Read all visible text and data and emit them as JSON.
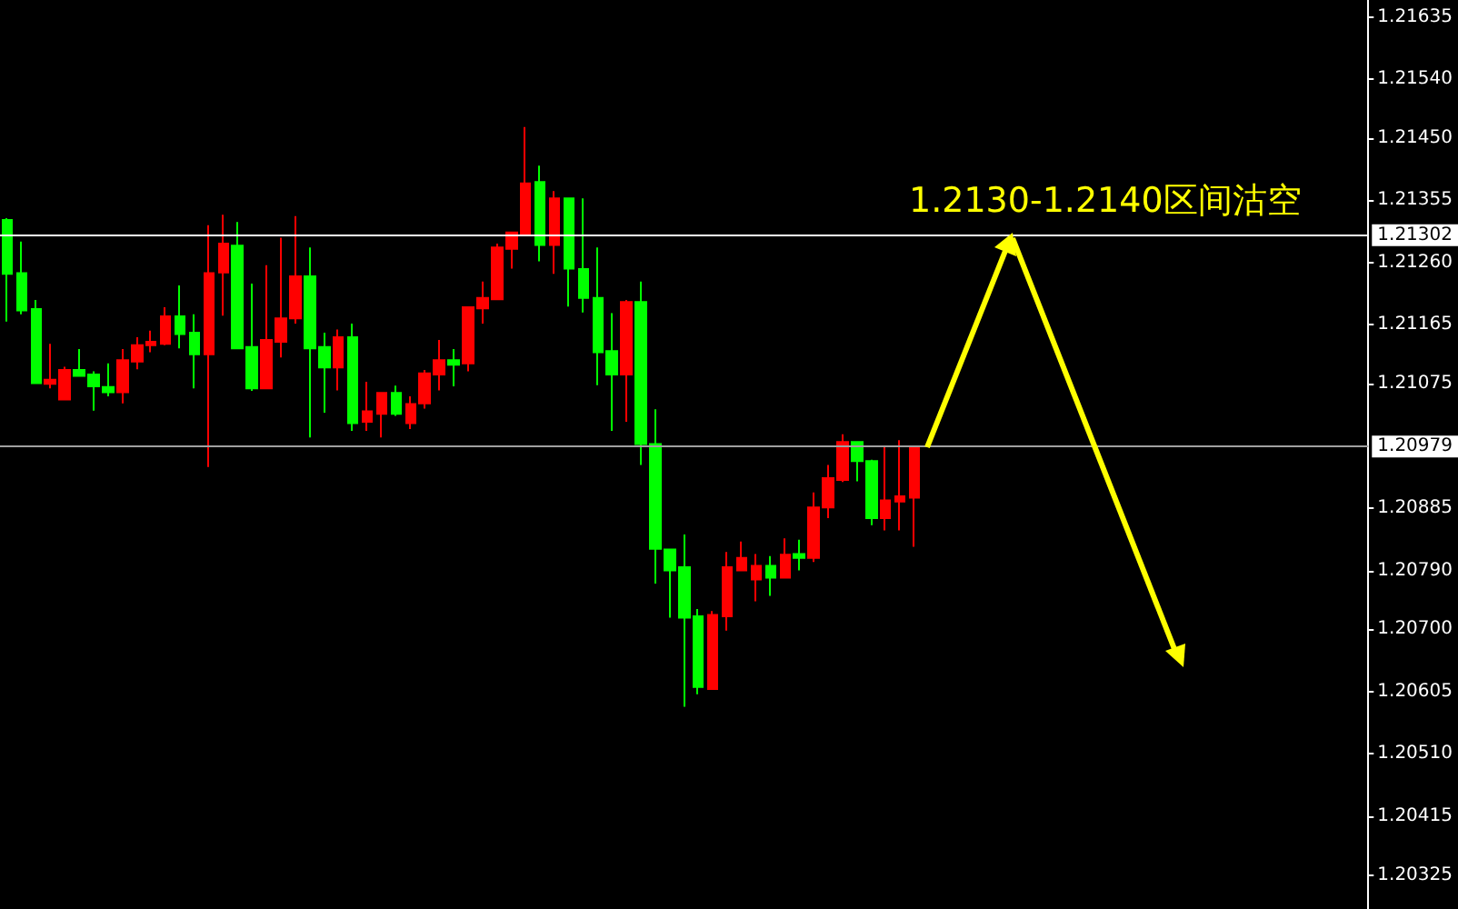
{
  "chart_data": {
    "type": "candlestick",
    "categories": [
      null,
      null,
      null,
      null,
      null,
      null,
      null,
      null,
      null,
      null,
      null,
      null,
      null,
      null,
      null,
      null,
      null,
      null,
      null,
      null,
      null,
      null,
      null,
      null,
      null,
      null,
      null,
      null,
      null,
      null,
      null,
      null,
      null,
      null,
      null,
      null,
      null,
      null,
      null,
      null,
      null,
      null,
      null,
      null,
      null,
      null,
      null,
      null,
      null,
      null,
      null,
      null,
      null,
      null,
      null,
      null,
      null,
      null,
      null,
      null,
      null,
      null,
      null,
      null,
      null,
      null,
      null,
      null,
      null,
      null,
      null,
      null,
      null,
      null,
      null,
      null,
      null,
      null,
      null,
      null,
      null,
      null,
      null,
      null,
      null,
      null,
      null,
      null,
      null,
      null,
      null,
      null,
      null,
      null,
      null
    ],
    "ohlc": [
      [
        1.21325,
        1.21328,
        1.2117,
        1.21243
      ],
      [
        1.21244,
        1.21292,
        1.21181,
        1.21187
      ],
      [
        1.21189,
        1.21203,
        1.21076,
        1.21076
      ],
      [
        1.21075,
        1.21136,
        1.21068,
        1.21081
      ],
      [
        1.21051,
        1.21101,
        1.21051,
        1.21096
      ],
      [
        1.21096,
        1.21128,
        1.21087,
        1.21087
      ],
      [
        1.21089,
        1.21094,
        1.21034,
        1.21071
      ],
      [
        1.2107,
        1.21106,
        1.21056,
        1.21062
      ],
      [
        1.21062,
        1.21128,
        1.21045,
        1.21111
      ],
      [
        1.21109,
        1.21146,
        1.21097,
        1.21134
      ],
      [
        1.21134,
        1.21156,
        1.21123,
        1.21139
      ],
      [
        1.21136,
        1.21192,
        1.21134,
        1.21178
      ],
      [
        1.21178,
        1.21225,
        1.21129,
        1.21151
      ],
      [
        1.21153,
        1.21181,
        1.21068,
        1.2112
      ],
      [
        1.2112,
        1.21317,
        1.20948,
        1.21244
      ],
      [
        1.21245,
        1.21333,
        1.21179,
        1.21289
      ],
      [
        1.21286,
        1.21322,
        1.21129,
        1.21129
      ],
      [
        1.21131,
        1.21228,
        1.21064,
        1.21068
      ],
      [
        1.21068,
        1.21256,
        1.21068,
        1.21142
      ],
      [
        1.21139,
        1.21298,
        1.21115,
        1.21175
      ],
      [
        1.21175,
        1.21331,
        1.21167,
        1.21239
      ],
      [
        1.21239,
        1.21283,
        1.20993,
        1.21129
      ],
      [
        1.21131,
        1.21153,
        1.21031,
        1.211
      ],
      [
        1.211,
        1.21158,
        1.21065,
        1.21146
      ],
      [
        1.21146,
        1.21167,
        1.21003,
        1.21015
      ],
      [
        1.21017,
        1.21078,
        1.21003,
        1.21033
      ],
      [
        1.21029,
        1.21061,
        1.20993,
        1.21061
      ],
      [
        1.21061,
        1.21072,
        1.21026,
        1.21029
      ],
      [
        1.21015,
        1.21056,
        1.21006,
        1.21044
      ],
      [
        1.21045,
        1.21096,
        1.21037,
        1.21091
      ],
      [
        1.21089,
        1.21142,
        1.21065,
        1.21111
      ],
      [
        1.21111,
        1.21128,
        1.21071,
        1.21104
      ],
      [
        1.21106,
        1.21192,
        1.21094,
        1.21192
      ],
      [
        1.2119,
        1.21231,
        1.21167,
        1.21206
      ],
      [
        1.21204,
        1.21289,
        1.21204,
        1.21283
      ],
      [
        1.21281,
        1.21306,
        1.21251,
        1.21306
      ],
      [
        1.21304,
        1.21467,
        1.21304,
        1.21381
      ],
      [
        1.21383,
        1.21408,
        1.21262,
        1.21287
      ],
      [
        1.21287,
        1.21369,
        1.21243,
        1.21358
      ],
      [
        1.21358,
        1.21358,
        1.21193,
        1.21251
      ],
      [
        1.2125,
        1.21358,
        1.21184,
        1.21206
      ],
      [
        1.21206,
        1.21283,
        1.21073,
        1.21123
      ],
      [
        1.21125,
        1.21183,
        1.21003,
        1.21089
      ],
      [
        1.21089,
        1.21203,
        1.21017,
        1.212
      ],
      [
        1.212,
        1.21231,
        1.20951,
        1.20983
      ],
      [
        1.20983,
        1.21036,
        1.2077,
        1.20823
      ],
      [
        1.20822,
        1.20823,
        1.20718,
        1.2079
      ],
      [
        1.20795,
        1.20845,
        1.20582,
        1.20718
      ],
      [
        1.2072,
        1.20731,
        1.20601,
        1.20612
      ],
      [
        1.20609,
        1.20728,
        1.20609,
        1.20722
      ],
      [
        1.2072,
        1.20818,
        1.20698,
        1.20795
      ],
      [
        1.2079,
        1.20834,
        1.2079,
        1.20809
      ],
      [
        1.20776,
        1.20815,
        1.20743,
        1.20797
      ],
      [
        1.20797,
        1.20812,
        1.20751,
        1.20779
      ],
      [
        1.20779,
        1.20839,
        1.20779,
        1.20814
      ],
      [
        1.20815,
        1.20837,
        1.2079,
        1.20809
      ],
      [
        1.20809,
        1.20909,
        1.20803,
        1.20886
      ],
      [
        1.20886,
        1.20951,
        1.2087,
        1.20931
      ],
      [
        1.20928,
        1.20998,
        1.20925,
        1.20986
      ],
      [
        1.20986,
        1.20986,
        1.20926,
        1.20957
      ],
      [
        1.20957,
        1.20959,
        1.20859,
        1.2087
      ],
      [
        1.2087,
        1.20981,
        1.20851,
        1.20897
      ],
      [
        1.20895,
        1.20989,
        1.20851,
        1.20903
      ],
      [
        1.20901,
        1.20981,
        1.20826,
        1.20979
      ],
      null,
      null,
      null,
      null,
      null,
      null,
      null,
      null,
      null,
      null,
      null,
      null,
      null,
      null,
      null,
      null,
      null,
      null,
      null,
      null,
      null,
      null,
      null,
      null,
      null,
      null,
      null,
      null,
      null,
      null,
      null
    ],
    "colors": [
      "#00ff00",
      "#00ff00",
      "#00ff00",
      "#ff0000",
      "#ff0000",
      "#00ff00",
      "#00ff00",
      "#00ff00",
      "#ff0000",
      "#ff0000",
      "#ff0000",
      "#ff0000",
      "#00ff00",
      "#00ff00",
      "#ff0000",
      "#ff0000",
      "#00ff00",
      "#00ff00",
      "#ff0000",
      "#ff0000",
      "#ff0000",
      "#00ff00",
      "#00ff00",
      "#ff0000",
      "#00ff00",
      "#ff0000",
      "#ff0000",
      "#00ff00",
      "#ff0000",
      "#ff0000",
      "#ff0000",
      "#00ff00",
      "#ff0000",
      "#ff0000",
      "#ff0000",
      "#ff0000",
      "#ff0000",
      "#00ff00",
      "#ff0000",
      "#00ff00",
      "#00ff00",
      "#00ff00",
      "#00ff00",
      "#ff0000",
      "#00ff00",
      "#00ff00",
      "#00ff00",
      "#00ff00",
      "#00ff00",
      "#ff0000",
      "#ff0000",
      "#ff0000",
      "#ff0000",
      "#00ff00",
      "#ff0000",
      "#00ff00",
      "#ff0000",
      "#ff0000",
      "#ff0000",
      "#00ff00",
      "#00ff00",
      "#ff0000",
      "#ff0000",
      "#ff0000",
      null,
      null,
      null,
      null,
      null,
      null,
      null,
      null,
      null,
      null,
      null,
      null,
      null,
      null,
      null,
      null,
      null,
      null,
      null,
      null,
      null,
      null,
      null,
      null,
      null,
      null,
      null,
      null,
      null,
      null,
      null
    ],
    "ylim": [
      1.20273,
      1.21661
    ],
    "yticks": [
      1.20325,
      1.20415,
      {
        "value": 1.2051,
        "label": "1.20510"
      },
      1.20605,
      {
        "value": 1.207,
        "label": "1.20700"
      },
      {
        "value": 1.2079,
        "label": "1.20790"
      },
      1.20885,
      1.21075,
      1.21165,
      {
        "value": 1.2126,
        "label": "1.21260"
      },
      1.21355,
      {
        "value": 1.2145,
        "label": "1.21450"
      },
      {
        "value": 1.2154,
        "label": "1.21540"
      },
      1.21635
    ],
    "ref_lines": [
      {
        "axis": "y",
        "value": 1.21302,
        "label": "1.21302",
        "color": "#ffffff"
      },
      {
        "axis": "y",
        "value": 1.20979,
        "label": "1.20979",
        "color": "#a0a0a0"
      }
    ],
    "annotations": [
      "1.2130-1.2140区间沽空"
    ],
    "tick_labels": "y"
  }
}
